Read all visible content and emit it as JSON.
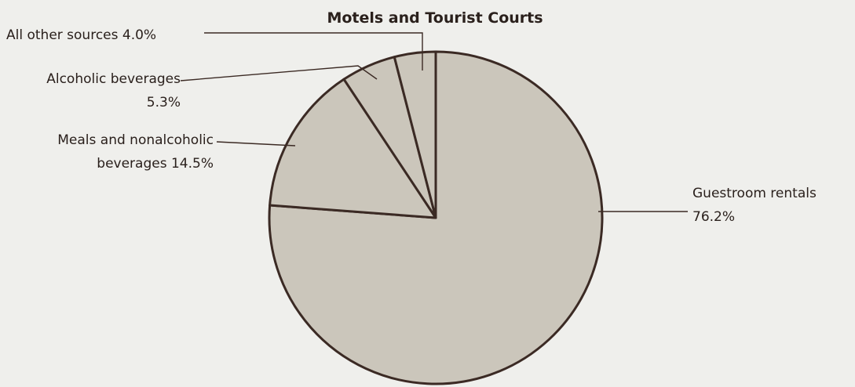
{
  "chart_data": {
    "type": "pie",
    "title": "Motels and Tourist Courts",
    "categories": [
      "Guestroom rentals",
      "Meals and nonalcoholic beverages",
      "Alcoholic beverages",
      "All other sources"
    ],
    "values": [
      76.2,
      14.5,
      5.3,
      4.0
    ],
    "value_labels": [
      "76.2%",
      "14.5%",
      "5.3%",
      "4.0%"
    ],
    "color": "#cbc6bb",
    "edge_color": "#3b2a24"
  }
}
